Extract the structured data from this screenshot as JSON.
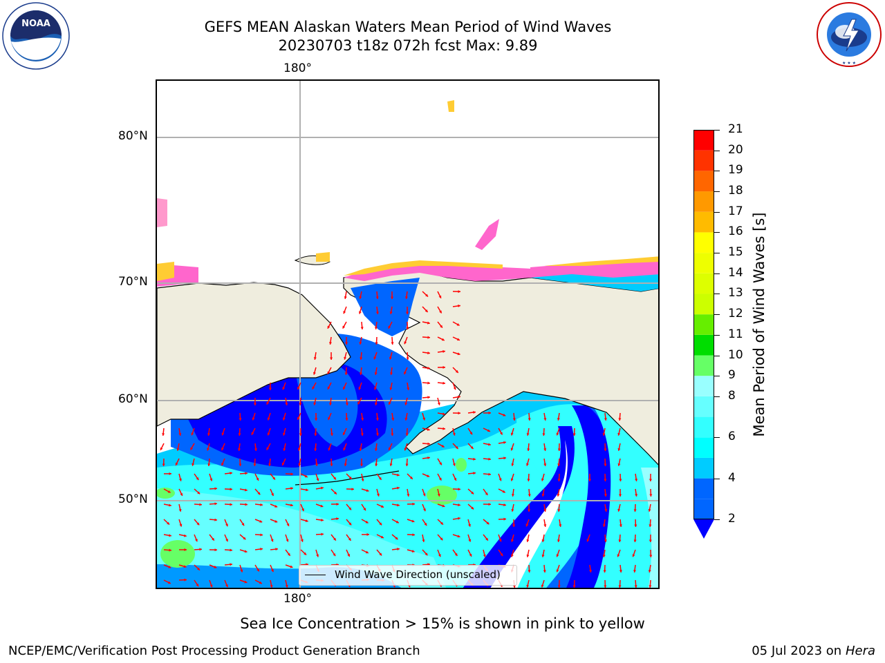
{
  "title": {
    "line1": "GEFS MEAN Alaskan Waters Mean Period of Wind Waves",
    "line2": "20230703 t18z 072h fcst   Max: 9.89"
  },
  "logos": {
    "noaa": {
      "text": "NOAA",
      "ring_text": "NATIONAL OCEANIC AND ATMOSPHERIC ADMINISTRATION · U.S. DEPARTMENT OF COMMERCE"
    },
    "nws": {
      "ring_text": "NATIONAL WEATHER SERVICE"
    }
  },
  "map": {
    "lon_labels": {
      "top": "180°",
      "bottom": "180°"
    },
    "lat_labels": [
      "80°N",
      "70°N",
      "60°N",
      "50°N"
    ],
    "legend_label": "Wind Wave Direction (unscaled)",
    "arrow_color": "#ff0000",
    "land_color": "#efedde",
    "ocean_colors": {
      "deep_blue": "#0000ff",
      "blue": "#0066ff",
      "light_blue": "#0099ff",
      "cyan": "#00ffff",
      "pale_cyan": "#66ffff",
      "aqua": "#99ffff",
      "green": "#66ff66"
    },
    "ice_colors": [
      "#ff66cc",
      "#ff99cc",
      "#ffcc33",
      "#ffff66"
    ]
  },
  "colorbar": {
    "label": "Mean Period of Wind Waves [s]",
    "ticks": [
      "21",
      "20",
      "19",
      "18",
      "17",
      "16",
      "15",
      "14",
      "13",
      "12",
      "11",
      "10",
      "9",
      "8",
      "6",
      "4",
      "2"
    ],
    "bins": [
      {
        "from": 2,
        "to": 3,
        "color": "#0066ff"
      },
      {
        "from": 3,
        "to": 4,
        "color": "#0066ff"
      },
      {
        "from": 4,
        "to": 5,
        "color": "#00ccff"
      },
      {
        "from": 5,
        "to": 6,
        "color": "#00ffff"
      },
      {
        "from": 6,
        "to": 7,
        "color": "#33ffff"
      },
      {
        "from": 7,
        "to": 8,
        "color": "#66ffff"
      },
      {
        "from": 8,
        "to": 9,
        "color": "#99ffff"
      },
      {
        "from": 9,
        "to": 10,
        "color": "#66ff66"
      },
      {
        "from": 10,
        "to": 11,
        "color": "#00dd00"
      },
      {
        "from": 11,
        "to": 12,
        "color": "#66ee00"
      },
      {
        "from": 12,
        "to": 13,
        "color": "#ccff00"
      },
      {
        "from": 13,
        "to": 14,
        "color": "#ddff00"
      },
      {
        "from": 14,
        "to": 15,
        "color": "#eeff00"
      },
      {
        "from": 15,
        "to": 16,
        "color": "#ffff00"
      },
      {
        "from": 16,
        "to": 17,
        "color": "#ffbb00"
      },
      {
        "from": 17,
        "to": 18,
        "color": "#ff9900"
      },
      {
        "from": 18,
        "to": 19,
        "color": "#ff6600"
      },
      {
        "from": 19,
        "to": 20,
        "color": "#ff3300"
      },
      {
        "from": 20,
        "to": 21,
        "color": "#ff0000"
      }
    ],
    "extend_color": "#0000ff"
  },
  "ice_note": "Sea Ice Concentration > 15% is shown in pink to yellow",
  "footer": {
    "left": "NCEP/EMC/Verification Post Processing Product Generation Branch",
    "right_prefix": "05 Jul 2023 on ",
    "right_host": "Hera"
  }
}
